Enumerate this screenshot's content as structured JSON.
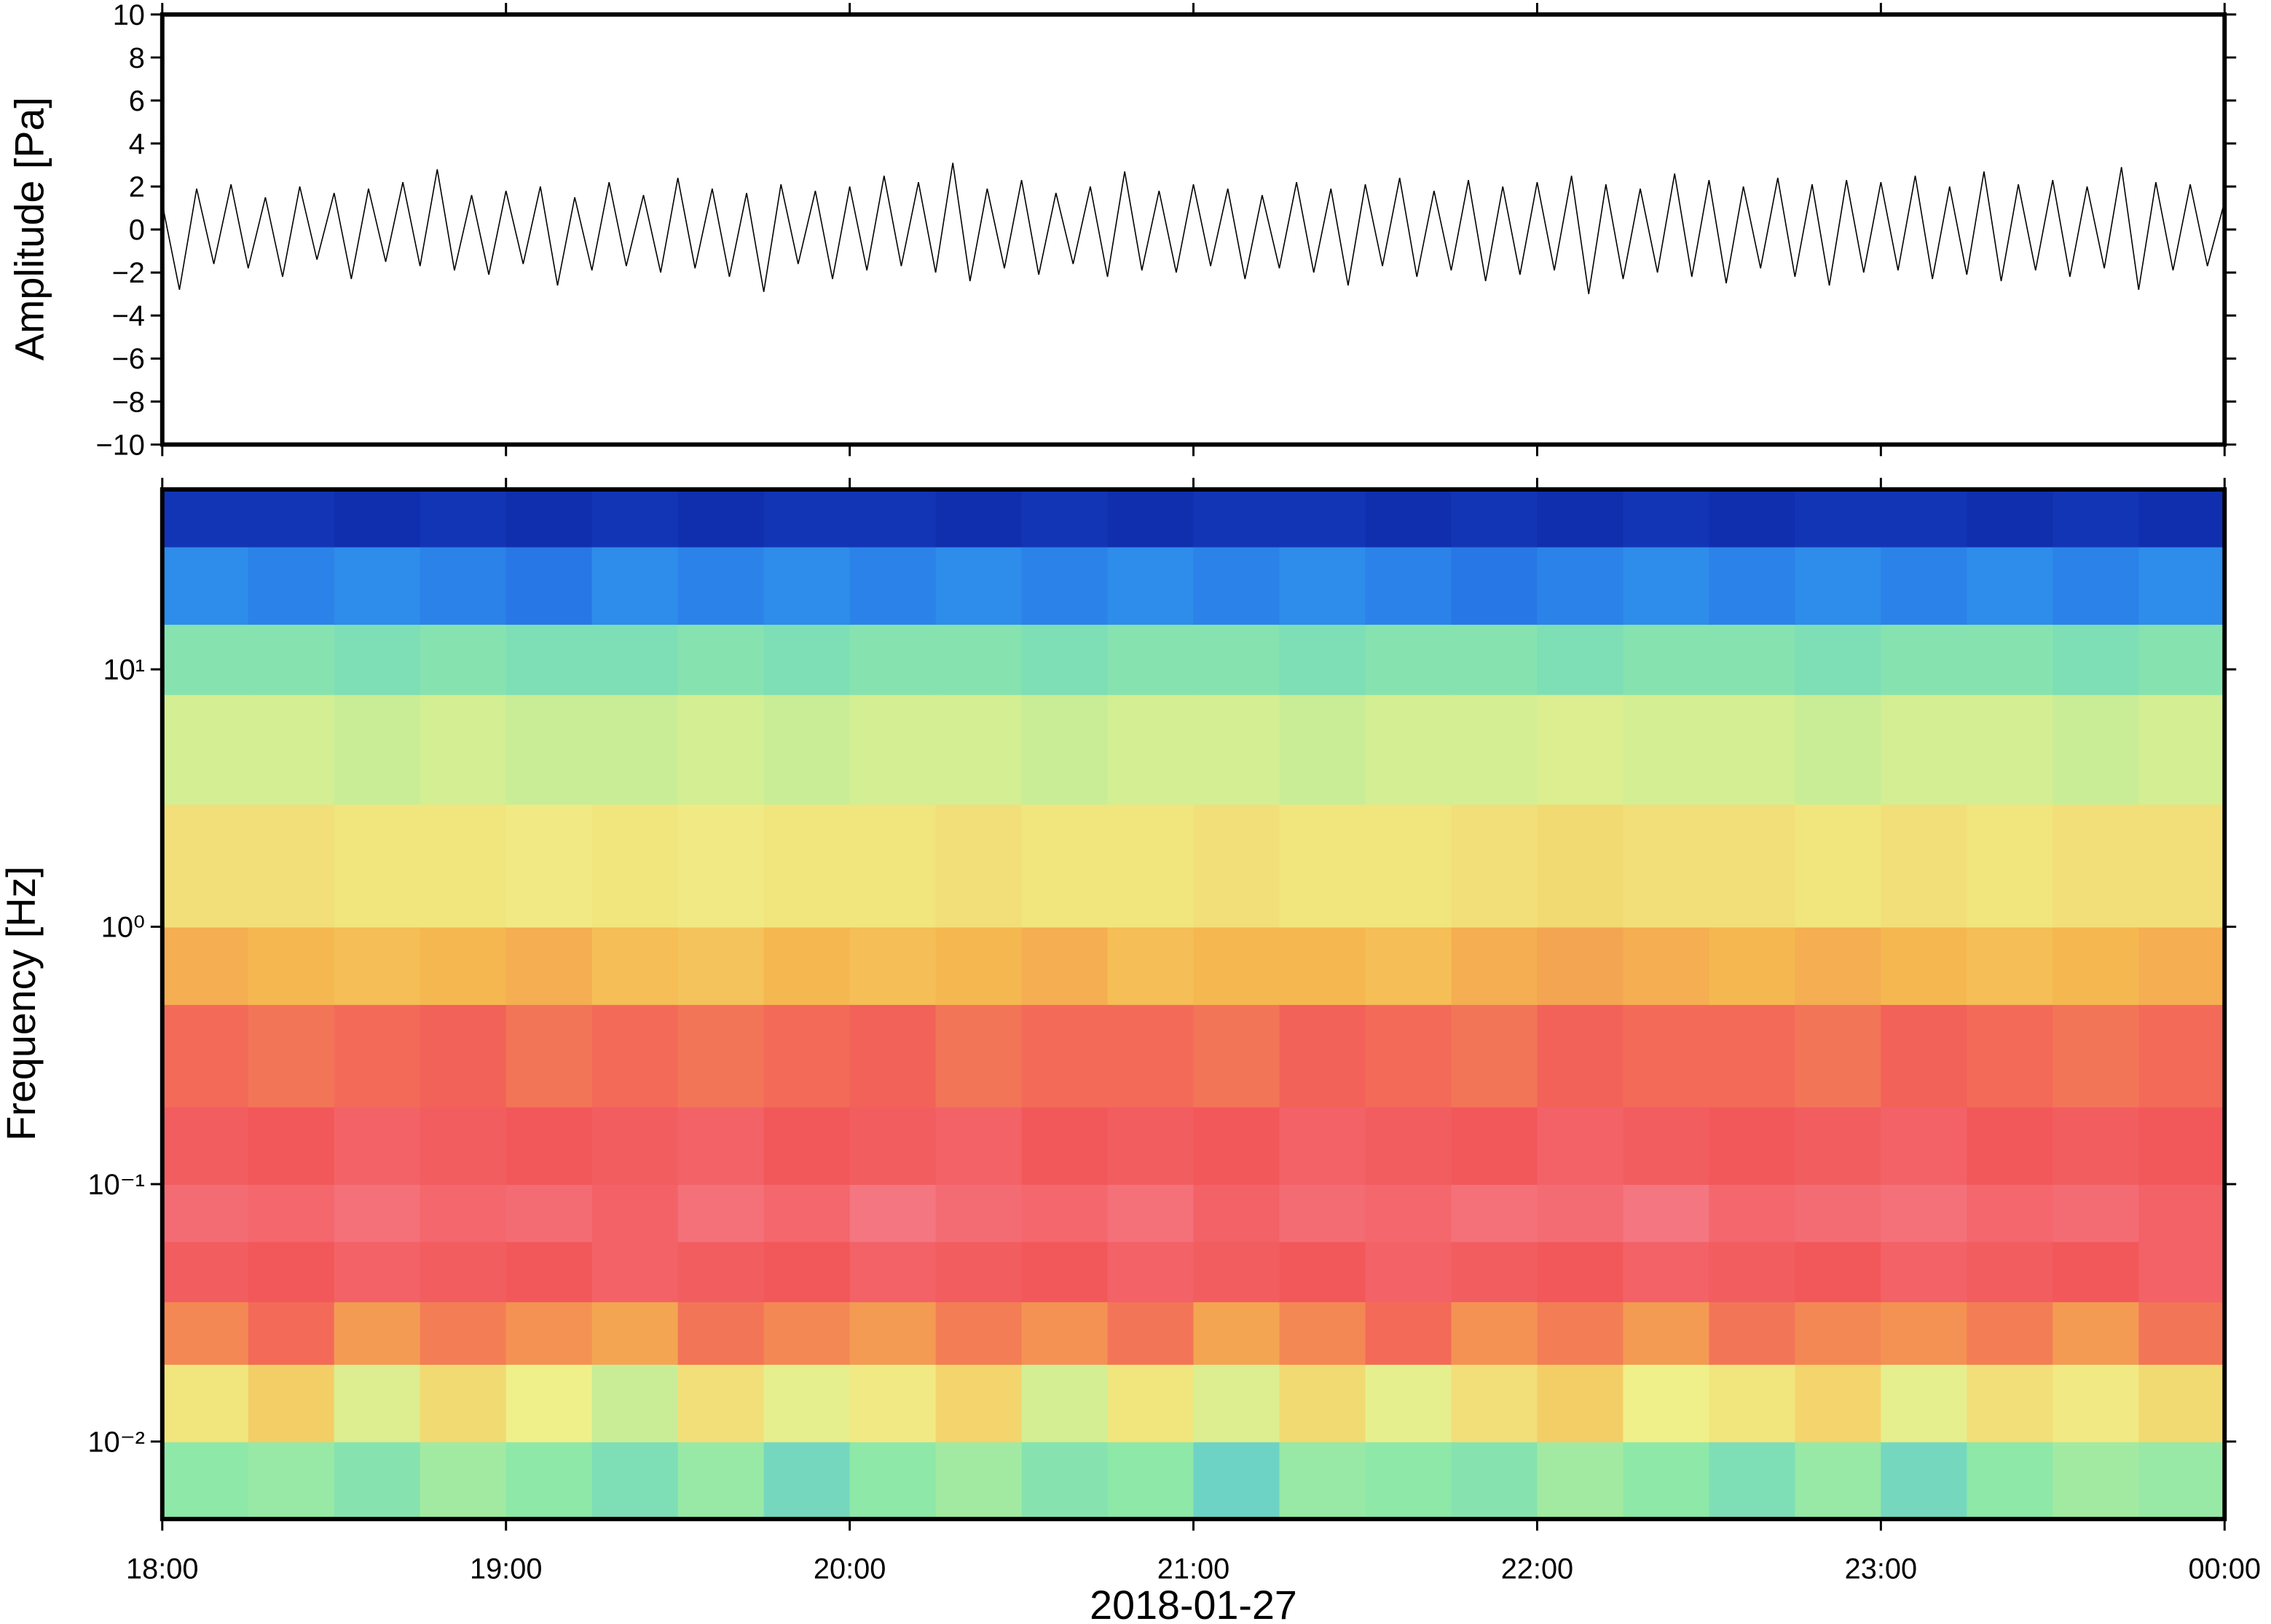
{
  "chart_data": [
    {
      "type": "line",
      "ylabel": "Amplitude [Pa]",
      "color": "#000000",
      "ylim": [
        -10,
        10
      ],
      "yticks": [
        {
          "value": -10,
          "label": "−10"
        },
        {
          "value": -8,
          "label": "−8"
        },
        {
          "value": -6,
          "label": "−6"
        },
        {
          "value": -4,
          "label": "−4"
        },
        {
          "value": -2,
          "label": "−2"
        },
        0,
        2,
        4,
        6,
        8,
        10
      ],
      "xlim": [
        18,
        24
      ],
      "x": [
        18,
        18.05,
        18.1,
        18.15,
        18.2,
        18.25,
        18.3,
        18.35,
        18.4,
        18.45,
        18.5,
        18.55,
        18.6,
        18.65,
        18.7,
        18.75,
        18.8,
        18.85,
        18.9,
        18.95,
        19,
        19.05,
        19.1,
        19.15,
        19.2,
        19.25,
        19.3,
        19.35,
        19.4,
        19.45,
        19.5,
        19.55,
        19.6,
        19.65,
        19.7,
        19.75,
        19.8,
        19.85,
        19.9,
        19.95,
        20,
        20.05,
        20.1,
        20.15,
        20.2,
        20.25,
        20.3,
        20.35,
        20.4,
        20.45,
        20.5,
        20.55,
        20.6,
        20.65,
        20.7,
        20.75,
        20.8,
        20.85,
        20.9,
        20.95,
        21,
        21.05,
        21.1,
        21.15,
        21.2,
        21.25,
        21.3,
        21.35,
        21.4,
        21.45,
        21.5,
        21.55,
        21.6,
        21.65,
        21.7,
        21.75,
        21.8,
        21.85,
        21.9,
        21.95,
        22,
        22.05,
        22.1,
        22.15,
        22.2,
        22.25,
        22.3,
        22.35,
        22.4,
        22.45,
        22.5,
        22.55,
        22.6,
        22.65,
        22.7,
        22.75,
        22.8,
        22.85,
        22.9,
        22.95,
        23,
        23.05,
        23.1,
        23.15,
        23.2,
        23.25,
        23.3,
        23.35,
        23.4,
        23.45,
        23.5,
        23.55,
        23.6,
        23.65,
        23.7,
        23.75,
        23.8,
        23.85,
        23.9,
        23.95,
        24
      ],
      "values": [
        1.2,
        -2.8,
        1.9,
        -1.6,
        2.1,
        -1.8,
        1.5,
        -2.2,
        2.0,
        -1.4,
        1.7,
        -2.3,
        1.9,
        -1.5,
        2.2,
        -1.7,
        2.8,
        -1.9,
        1.6,
        -2.1,
        1.8,
        -1.6,
        2.0,
        -2.6,
        1.5,
        -1.9,
        2.2,
        -1.7,
        1.6,
        -2.0,
        2.4,
        -1.8,
        1.9,
        -2.2,
        1.7,
        -2.9,
        2.1,
        -1.6,
        1.8,
        -2.3,
        2.0,
        -1.9,
        2.5,
        -1.7,
        2.2,
        -2.0,
        3.1,
        -2.4,
        1.9,
        -1.8,
        2.3,
        -2.1,
        1.7,
        -1.6,
        2.0,
        -2.2,
        2.7,
        -1.9,
        1.8,
        -2.0,
        2.1,
        -1.7,
        1.9,
        -2.3,
        1.6,
        -1.8,
        2.2,
        -2.0,
        1.9,
        -2.6,
        2.1,
        -1.7,
        2.4,
        -2.2,
        1.8,
        -1.9,
        2.3,
        -2.4,
        2.0,
        -2.1,
        2.2,
        -1.9,
        2.5,
        -3.0,
        2.1,
        -2.3,
        1.9,
        -2.0,
        2.6,
        -2.2,
        2.3,
        -2.5,
        2.0,
        -1.8,
        2.4,
        -2.2,
        2.1,
        -2.6,
        2.3,
        -2.0,
        2.2,
        -1.9,
        2.5,
        -2.3,
        2.0,
        -2.1,
        2.7,
        -2.4,
        2.1,
        -1.9,
        2.3,
        -2.2,
        2.0,
        -1.8,
        2.9,
        -2.8,
        2.2,
        -1.9,
        2.1,
        -1.7,
        1.3
      ]
    },
    {
      "type": "heatmap",
      "ylabel": "Frequency [Hz]",
      "xlabel": "2018-01-27",
      "log_y": true,
      "xlim": [
        18,
        24
      ],
      "xticks": [
        {
          "value": 18,
          "label": "18:00"
        },
        {
          "value": 19,
          "label": "19:00"
        },
        {
          "value": 20,
          "label": "20:00"
        },
        {
          "value": 21,
          "label": "21:00"
        },
        {
          "value": 22,
          "label": "22:00"
        },
        {
          "value": 23,
          "label": "23:00"
        },
        {
          "value": 24,
          "label": "00:00"
        }
      ],
      "ylim": [
        0.005,
        50
      ],
      "yticks": [
        {
          "value": 0.01,
          "label": "10⁻²"
        },
        {
          "value": 0.1,
          "label": "10⁻¹"
        },
        {
          "value": 1,
          "label": "10⁰"
        },
        {
          "value": 10,
          "label": "10¹"
        }
      ],
      "xbins": [
        18,
        18.25,
        18.5,
        18.75,
        19,
        19.25,
        19.5,
        19.75,
        20,
        20.25,
        20.5,
        20.75,
        21,
        21.25,
        21.5,
        21.75,
        22,
        22.25,
        22.5,
        22.75,
        23,
        23.25,
        23.5,
        23.75,
        24
      ],
      "ybins": [
        0.005,
        0.01,
        0.02,
        0.035,
        0.06,
        0.1,
        0.2,
        0.5,
        1,
        3,
        8,
        15,
        30,
        50
      ],
      "zlim": [
        0,
        7
      ],
      "colormap": [
        "#0a1a8c",
        "#1a4fe0",
        "#3cb4f0",
        "#8ee8a8",
        "#f0f08a",
        "#f5b850",
        "#f2585a",
        "#f58a9a"
      ],
      "z": [
        [
          3.0,
          3.1,
          2.9,
          3.2,
          3.0,
          2.8,
          3.1,
          2.7,
          3.0,
          3.2,
          2.9,
          3.0,
          2.6,
          3.1,
          3.0,
          2.9,
          3.2,
          3.0,
          2.8,
          3.1,
          2.7,
          3.0,
          3.2,
          3.1
        ],
        [
          4.2,
          4.6,
          3.8,
          4.4,
          4.0,
          3.6,
          4.3,
          3.9,
          4.1,
          4.5,
          3.7,
          4.2,
          3.8,
          4.4,
          3.9,
          4.3,
          4.6,
          4.0,
          4.2,
          4.5,
          3.9,
          4.3,
          4.1,
          4.4
        ],
        [
          5.5,
          5.8,
          5.3,
          5.6,
          5.4,
          5.2,
          5.7,
          5.5,
          5.3,
          5.6,
          5.4,
          5.7,
          5.2,
          5.5,
          5.8,
          5.4,
          5.6,
          5.3,
          5.7,
          5.5,
          5.4,
          5.6,
          5.3,
          5.7
        ],
        [
          6.1,
          6.0,
          6.2,
          6.1,
          6.0,
          6.2,
          6.1,
          6.0,
          6.2,
          6.1,
          6.0,
          6.2,
          6.1,
          6.0,
          6.2,
          6.1,
          6.0,
          6.2,
          6.1,
          6.0,
          6.2,
          6.1,
          6.0,
          6.2
        ],
        [
          6.4,
          6.3,
          6.5,
          6.3,
          6.4,
          6.2,
          6.5,
          6.3,
          6.6,
          6.4,
          6.3,
          6.5,
          6.2,
          6.4,
          6.3,
          6.5,
          6.4,
          6.6,
          6.3,
          6.4,
          6.5,
          6.3,
          6.4,
          6.2
        ],
        [
          6.1,
          6.0,
          6.2,
          6.1,
          6.0,
          6.1,
          6.2,
          6.0,
          6.1,
          6.2,
          6.0,
          6.1,
          6.0,
          6.2,
          6.1,
          6.0,
          6.2,
          6.1,
          6.0,
          6.1,
          6.2,
          6.0,
          6.1,
          6.0
        ],
        [
          5.8,
          5.7,
          5.8,
          5.9,
          5.7,
          5.8,
          5.7,
          5.8,
          5.9,
          5.7,
          5.8,
          5.8,
          5.7,
          5.9,
          5.8,
          5.7,
          5.9,
          5.8,
          5.8,
          5.7,
          5.9,
          5.8,
          5.7,
          5.8
        ],
        [
          5.1,
          5.0,
          4.9,
          5.0,
          5.1,
          4.9,
          4.8,
          5.0,
          4.9,
          5.0,
          5.1,
          4.9,
          5.0,
          5.0,
          4.9,
          5.1,
          5.2,
          5.1,
          5.0,
          5.1,
          5.0,
          4.9,
          5.0,
          5.1
        ],
        [
          4.3,
          4.3,
          4.2,
          4.2,
          4.1,
          4.2,
          4.1,
          4.2,
          4.2,
          4.3,
          4.2,
          4.2,
          4.3,
          4.2,
          4.2,
          4.3,
          4.4,
          4.3,
          4.3,
          4.2,
          4.3,
          4.2,
          4.3,
          4.3
        ],
        [
          3.7,
          3.7,
          3.6,
          3.7,
          3.6,
          3.6,
          3.7,
          3.6,
          3.7,
          3.7,
          3.6,
          3.7,
          3.7,
          3.6,
          3.7,
          3.7,
          3.8,
          3.7,
          3.7,
          3.6,
          3.7,
          3.7,
          3.6,
          3.7
        ],
        [
          2.9,
          2.9,
          2.8,
          2.9,
          2.8,
          2.8,
          2.9,
          2.8,
          2.9,
          2.9,
          2.8,
          2.9,
          2.9,
          2.8,
          2.9,
          2.9,
          2.8,
          2.9,
          2.9,
          2.8,
          2.9,
          2.9,
          2.8,
          2.9
        ],
        [
          1.6,
          1.5,
          1.6,
          1.5,
          1.4,
          1.6,
          1.5,
          1.6,
          1.5,
          1.6,
          1.5,
          1.6,
          1.5,
          1.6,
          1.5,
          1.4,
          1.5,
          1.6,
          1.5,
          1.6,
          1.5,
          1.6,
          1.5,
          1.6
        ],
        [
          0.5,
          0.5,
          0.4,
          0.5,
          0.4,
          0.5,
          0.4,
          0.5,
          0.5,
          0.4,
          0.5,
          0.4,
          0.5,
          0.5,
          0.4,
          0.5,
          0.4,
          0.5,
          0.4,
          0.5,
          0.5,
          0.4,
          0.5,
          0.4
        ]
      ]
    }
  ]
}
